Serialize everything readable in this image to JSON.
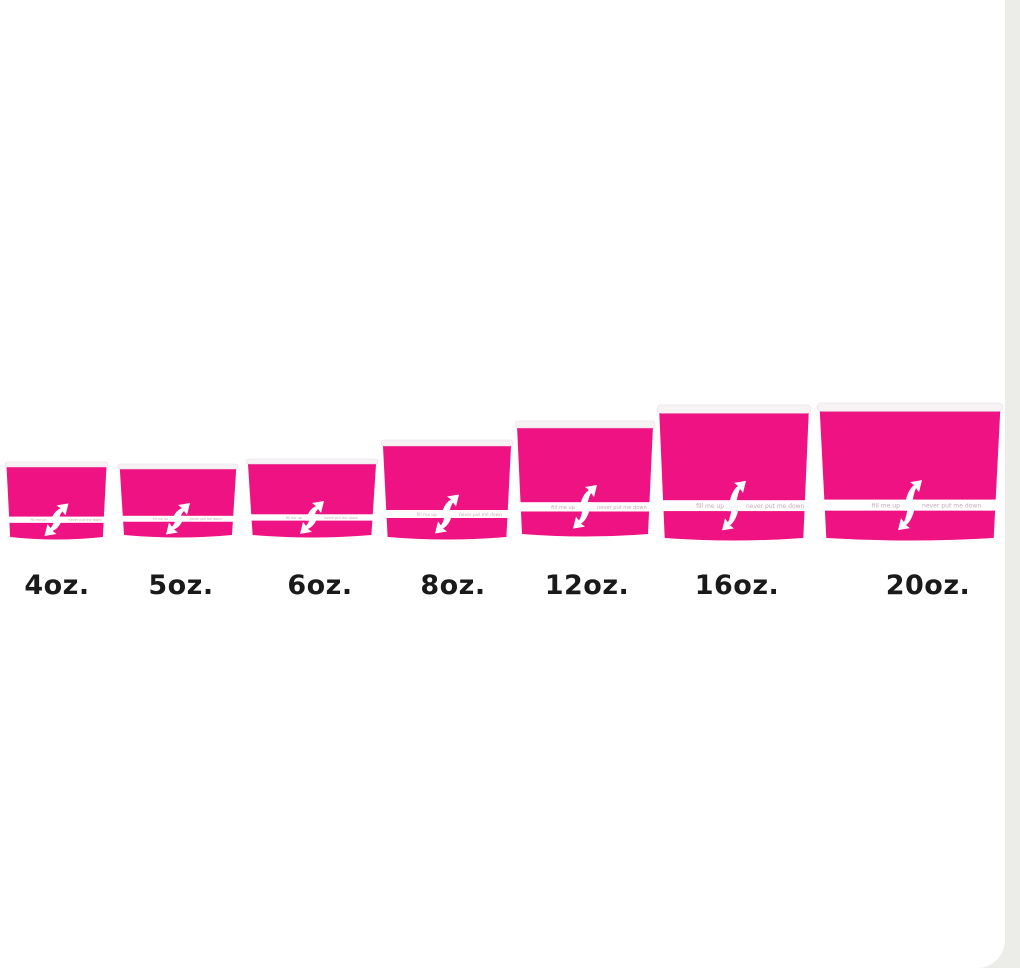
{
  "product": {
    "cup_color": "#ee1283",
    "band_color": "#ffffff",
    "band_text_left": "fill me up",
    "band_text_right": "never put me down",
    "sizes": [
      {
        "label": "4oz."
      },
      {
        "label": "5oz."
      },
      {
        "label": "6oz."
      },
      {
        "label": "8oz."
      },
      {
        "label": "12oz."
      },
      {
        "label": "16oz."
      },
      {
        "label": "20oz."
      }
    ]
  }
}
